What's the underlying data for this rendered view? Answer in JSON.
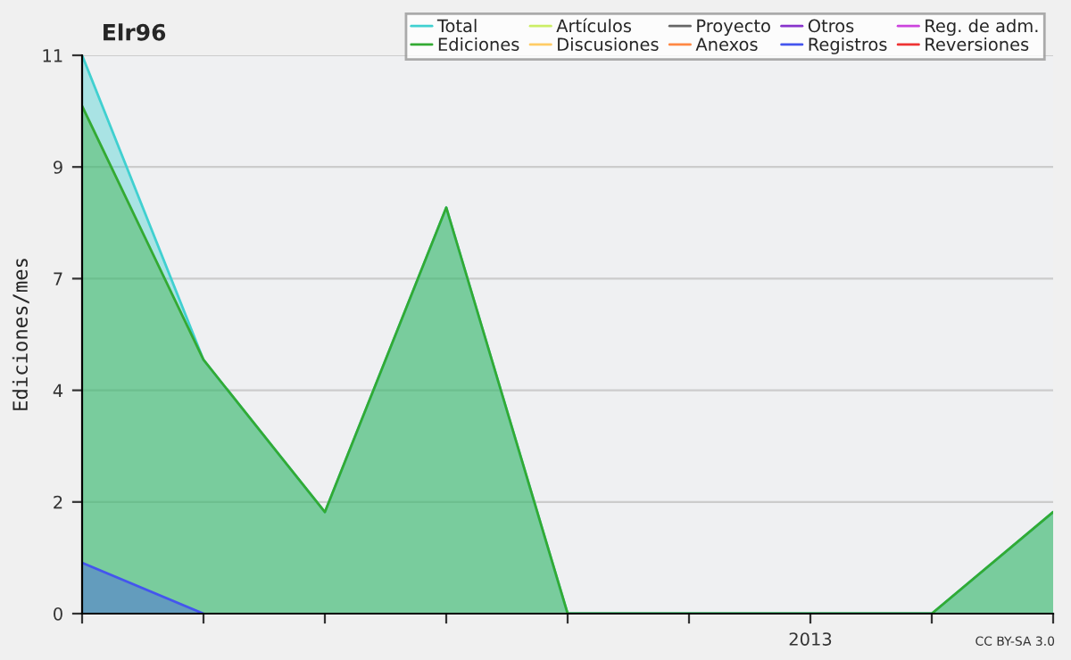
{
  "chart_data": {
    "type": "area",
    "title": "Elr96",
    "ylabel": "Ediciones/mes",
    "categories": [
      null,
      null,
      null,
      null,
      null,
      null,
      "2013",
      null,
      null
    ],
    "ylim": [
      0,
      11
    ],
    "yticks": [
      0,
      {
        "value": 2.2,
        "label": "2"
      },
      {
        "value": 4.4,
        "label": "4"
      },
      {
        "value": 6.6,
        "label": "7"
      },
      {
        "value": 8.8,
        "label": "9"
      },
      11
    ],
    "grid": "y",
    "legend": "top right",
    "series": [
      {
        "name": "Total",
        "color": "#40d0d0",
        "values": [
          11,
          5,
          2,
          8,
          0,
          0,
          0,
          0,
          2
        ]
      },
      {
        "name": "Ediciones",
        "color": "#33aa33",
        "values": [
          10,
          5,
          2,
          8,
          0,
          0,
          0,
          0,
          2
        ]
      },
      {
        "name": "Artículos",
        "color": "#ccee66",
        "values": [
          null,
          null,
          null,
          null,
          null,
          null,
          null,
          null,
          null
        ]
      },
      {
        "name": "Discusiones",
        "color": "#ffcc66",
        "values": [
          null,
          null,
          null,
          null,
          null,
          null,
          null,
          null,
          null
        ]
      },
      {
        "name": "Proyecto",
        "color": "#666666",
        "values": [
          null,
          null,
          null,
          null,
          null,
          null,
          null,
          null,
          null
        ]
      },
      {
        "name": "Anexos",
        "color": "#ff8844",
        "values": [
          null,
          null,
          null,
          null,
          null,
          null,
          null,
          null,
          null
        ]
      },
      {
        "name": "Otros",
        "color": "#8833cc",
        "values": [
          null,
          null,
          null,
          null,
          null,
          null,
          null,
          null,
          null
        ]
      },
      {
        "name": "Registros",
        "color": "#4455ee",
        "values": [
          1,
          0,
          null,
          null,
          null,
          null,
          null,
          null,
          null
        ]
      },
      {
        "name": "Reg. de adm.",
        "color": "#cc44dd",
        "values": [
          null,
          null,
          null,
          null,
          null,
          null,
          null,
          null,
          null
        ]
      },
      {
        "name": "Reversiones",
        "color": "#ee3333",
        "values": [
          null,
          null,
          null,
          null,
          null,
          null,
          null,
          null,
          null
        ]
      }
    ],
    "annotations": [
      "CC BY-SA 3.0"
    ]
  }
}
